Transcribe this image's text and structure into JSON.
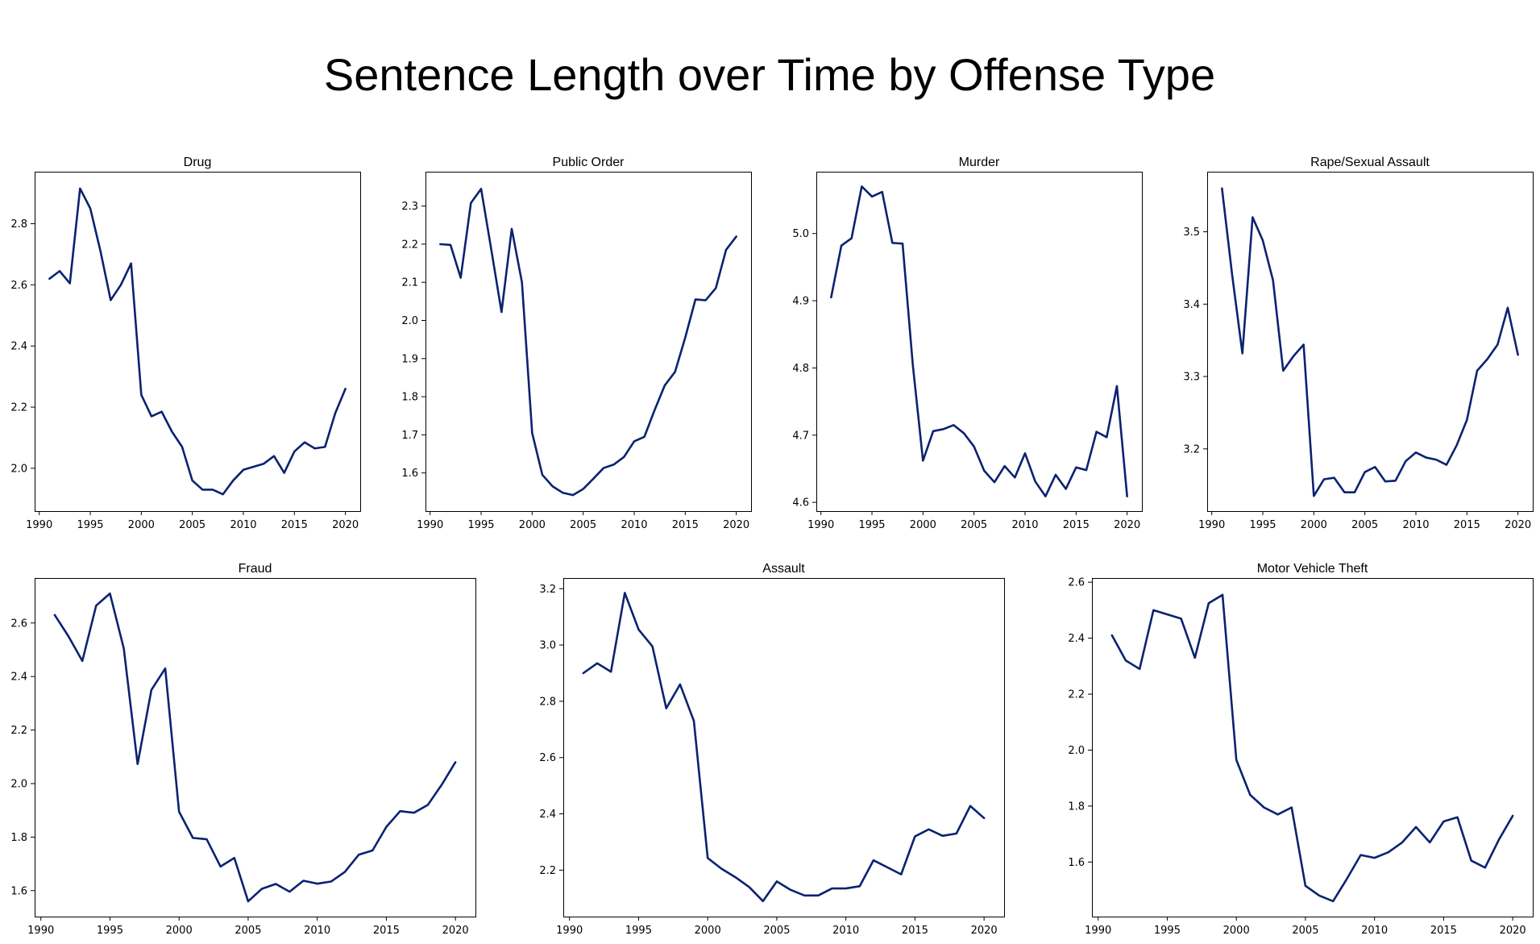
{
  "title": "Sentence Length over Time by Offense Type",
  "line_color": "#0b2270",
  "chart_data": [
    {
      "type": "line",
      "title": "Drug",
      "x": [
        1991,
        1992,
        1993,
        1994,
        1995,
        1996,
        1997,
        1998,
        1999,
        2000,
        2001,
        2002,
        2003,
        2004,
        2005,
        2006,
        2007,
        2008,
        2009,
        2010,
        2011,
        2012,
        2013,
        2014,
        2015,
        2016,
        2017,
        2018,
        2019,
        2020
      ],
      "values": [
        2.62,
        2.645,
        2.605,
        2.915,
        2.85,
        2.71,
        2.55,
        2.6,
        2.67,
        2.24,
        2.17,
        2.185,
        2.12,
        2.07,
        1.96,
        1.93,
        1.93,
        1.915,
        1.96,
        1.995,
        2.005,
        2.015,
        2.04,
        1.985,
        2.055,
        2.085,
        2.065,
        2.07,
        2.18,
        2.26
      ],
      "xticks": [
        1990,
        1995,
        2000,
        2005,
        2010,
        2015,
        2020
      ],
      "yticks": [
        2.0,
        2.2,
        2.4,
        2.6,
        2.8
      ],
      "ytick_labels": [
        "2.0",
        "2.2",
        "2.4",
        "2.6",
        "2.8"
      ],
      "xlim": [
        1989.55,
        2021.45
      ],
      "ylim": [
        1.86,
        2.97
      ]
    },
    {
      "type": "line",
      "title": "Public Order",
      "x": [
        1991,
        1992,
        1993,
        1994,
        1995,
        1996,
        1997,
        1998,
        1999,
        2000,
        2001,
        2002,
        2003,
        2004,
        2005,
        2006,
        2007,
        2008,
        2009,
        2010,
        2011,
        2012,
        2013,
        2014,
        2015,
        2016,
        2017,
        2018,
        2019,
        2020
      ],
      "values": [
        2.2,
        2.198,
        2.112,
        2.308,
        2.345,
        2.185,
        2.022,
        2.24,
        2.1,
        1.705,
        1.595,
        1.565,
        1.548,
        1.542,
        1.558,
        1.585,
        1.613,
        1.622,
        1.642,
        1.683,
        1.695,
        1.765,
        1.83,
        1.865,
        1.955,
        2.055,
        2.053,
        2.085,
        2.185,
        2.22
      ],
      "xticks": [
        1990,
        1995,
        2000,
        2005,
        2010,
        2015,
        2020
      ],
      "yticks": [
        1.6,
        1.7,
        1.8,
        1.9,
        2.0,
        2.1,
        2.2,
        2.3
      ],
      "ytick_labels": [
        "1.6",
        "1.7",
        "1.8",
        "1.9",
        "2.0",
        "2.1",
        "2.2",
        "2.3"
      ],
      "xlim": [
        1989.55,
        2021.45
      ],
      "ylim": [
        1.5,
        2.39
      ]
    },
    {
      "type": "line",
      "title": "Murder",
      "x": [
        1991,
        1992,
        1993,
        1994,
        1995,
        1996,
        1997,
        1998,
        1999,
        2000,
        2001,
        2002,
        2003,
        2004,
        2005,
        2006,
        2007,
        2008,
        2009,
        2010,
        2011,
        2012,
        2013,
        2014,
        2015,
        2016,
        2017,
        2018,
        2019,
        2020
      ],
      "values": [
        4.905,
        4.982,
        4.993,
        5.07,
        5.055,
        5.062,
        4.986,
        4.985,
        4.805,
        4.662,
        4.706,
        4.709,
        4.715,
        4.703,
        4.683,
        4.647,
        4.63,
        4.654,
        4.637,
        4.673,
        4.631,
        4.609,
        4.641,
        4.62,
        4.652,
        4.648,
        4.705,
        4.697,
        4.773,
        4.609
      ],
      "xticks": [
        1990,
        1995,
        2000,
        2005,
        2010,
        2015,
        2020
      ],
      "yticks": [
        4.6,
        4.7,
        4.8,
        4.9,
        5.0
      ],
      "ytick_labels": [
        "4.6",
        "4.7",
        "4.8",
        "4.9",
        "5.0"
      ],
      "xlim": [
        1989.55,
        2021.45
      ],
      "ylim": [
        4.587,
        5.092
      ]
    },
    {
      "type": "line",
      "title": "Rape/Sexual Assault",
      "x": [
        1991,
        1992,
        1993,
        1994,
        1995,
        1996,
        1997,
        1998,
        1999,
        2000,
        2001,
        2002,
        2003,
        2004,
        2005,
        2006,
        2007,
        2008,
        2009,
        2010,
        2011,
        2012,
        2013,
        2014,
        2015,
        2016,
        2017,
        2018,
        2019,
        2020
      ],
      "values": [
        3.56,
        3.44,
        3.332,
        3.52,
        3.488,
        3.433,
        3.308,
        3.328,
        3.344,
        3.135,
        3.158,
        3.16,
        3.14,
        3.14,
        3.168,
        3.175,
        3.155,
        3.156,
        3.183,
        3.195,
        3.188,
        3.185,
        3.178,
        3.205,
        3.24,
        3.308,
        3.324,
        3.344,
        3.395,
        3.33
      ],
      "xticks": [
        1990,
        1995,
        2000,
        2005,
        2010,
        2015,
        2020
      ],
      "yticks": [
        3.2,
        3.3,
        3.4,
        3.5
      ],
      "ytick_labels": [
        "3.2",
        "3.3",
        "3.4",
        "3.5"
      ],
      "xlim": [
        1989.55,
        2021.45
      ],
      "ylim": [
        3.114,
        3.583
      ]
    },
    {
      "type": "line",
      "title": "Fraud",
      "x": [
        1991,
        1992,
        1993,
        1994,
        1995,
        1996,
        1997,
        1998,
        1999,
        2000,
        2001,
        2002,
        2003,
        2004,
        2005,
        2006,
        2007,
        2008,
        2009,
        2010,
        2011,
        2012,
        2013,
        2014,
        2015,
        2016,
        2017,
        2018,
        2019,
        2020
      ],
      "values": [
        2.63,
        2.55,
        2.458,
        2.665,
        2.71,
        2.505,
        2.073,
        2.35,
        2.43,
        1.895,
        1.797,
        1.792,
        1.69,
        1.722,
        1.56,
        1.607,
        1.625,
        1.596,
        1.637,
        1.626,
        1.634,
        1.67,
        1.734,
        1.75,
        1.838,
        1.897,
        1.891,
        1.92,
        1.995,
        2.08
      ],
      "xticks": [
        1990,
        1995,
        2000,
        2005,
        2010,
        2015,
        2020
      ],
      "yticks": [
        1.6,
        1.8,
        2.0,
        2.2,
        2.4,
        2.6
      ],
      "ytick_labels": [
        "1.6",
        "1.8",
        "2.0",
        "2.2",
        "2.4",
        "2.6"
      ],
      "xlim": [
        1989.55,
        2021.45
      ],
      "ylim": [
        1.503,
        2.768
      ]
    },
    {
      "type": "line",
      "title": "Assault",
      "x": [
        1991,
        1992,
        1993,
        1994,
        1995,
        1996,
        1997,
        1998,
        1999,
        2000,
        2001,
        2002,
        2003,
        2004,
        2005,
        2006,
        2007,
        2008,
        2009,
        2010,
        2011,
        2012,
        2013,
        2014,
        2015,
        2016,
        2017,
        2018,
        2019,
        2020
      ],
      "values": [
        2.9,
        2.935,
        2.905,
        3.185,
        3.055,
        2.995,
        2.775,
        2.86,
        2.73,
        2.243,
        2.205,
        2.175,
        2.14,
        2.09,
        2.16,
        2.13,
        2.11,
        2.11,
        2.135,
        2.135,
        2.143,
        2.235,
        2.21,
        2.185,
        2.32,
        2.345,
        2.322,
        2.33,
        2.428,
        2.385
      ],
      "xticks": [
        1990,
        1995,
        2000,
        2005,
        2010,
        2015,
        2020
      ],
      "yticks": [
        2.2,
        2.4,
        2.6,
        2.8,
        3.0,
        3.2
      ],
      "ytick_labels": [
        "2.2",
        "2.4",
        "2.6",
        "2.8",
        "3.0",
        "3.2"
      ],
      "xlim": [
        1989.55,
        2021.45
      ],
      "ylim": [
        2.035,
        3.238
      ]
    },
    {
      "type": "line",
      "title": "Motor Vehicle Theft",
      "x": [
        1991,
        1992,
        1993,
        1994,
        1995,
        1996,
        1997,
        1998,
        1999,
        2000,
        2001,
        2002,
        2003,
        2004,
        2005,
        2006,
        2007,
        2008,
        2009,
        2010,
        2011,
        2012,
        2013,
        2014,
        2015,
        2016,
        2017,
        2018,
        2019,
        2020
      ],
      "values": [
        2.41,
        2.32,
        2.29,
        2.5,
        2.485,
        2.47,
        2.33,
        2.525,
        2.555,
        1.965,
        1.84,
        1.795,
        1.77,
        1.795,
        1.515,
        1.48,
        1.46,
        1.54,
        1.625,
        1.615,
        1.635,
        1.67,
        1.725,
        1.67,
        1.745,
        1.76,
        1.605,
        1.58,
        1.68,
        1.765
      ],
      "xticks": [
        1990,
        1995,
        2000,
        2005,
        2010,
        2015,
        2020
      ],
      "yticks": [
        1.6,
        1.8,
        2.0,
        2.2,
        2.4,
        2.6
      ],
      "ytick_labels": [
        "1.6",
        "1.8",
        "2.0",
        "2.2",
        "2.4",
        "2.6"
      ],
      "xlim": [
        1989.55,
        2021.45
      ],
      "ylim": [
        1.405,
        2.615
      ]
    }
  ]
}
